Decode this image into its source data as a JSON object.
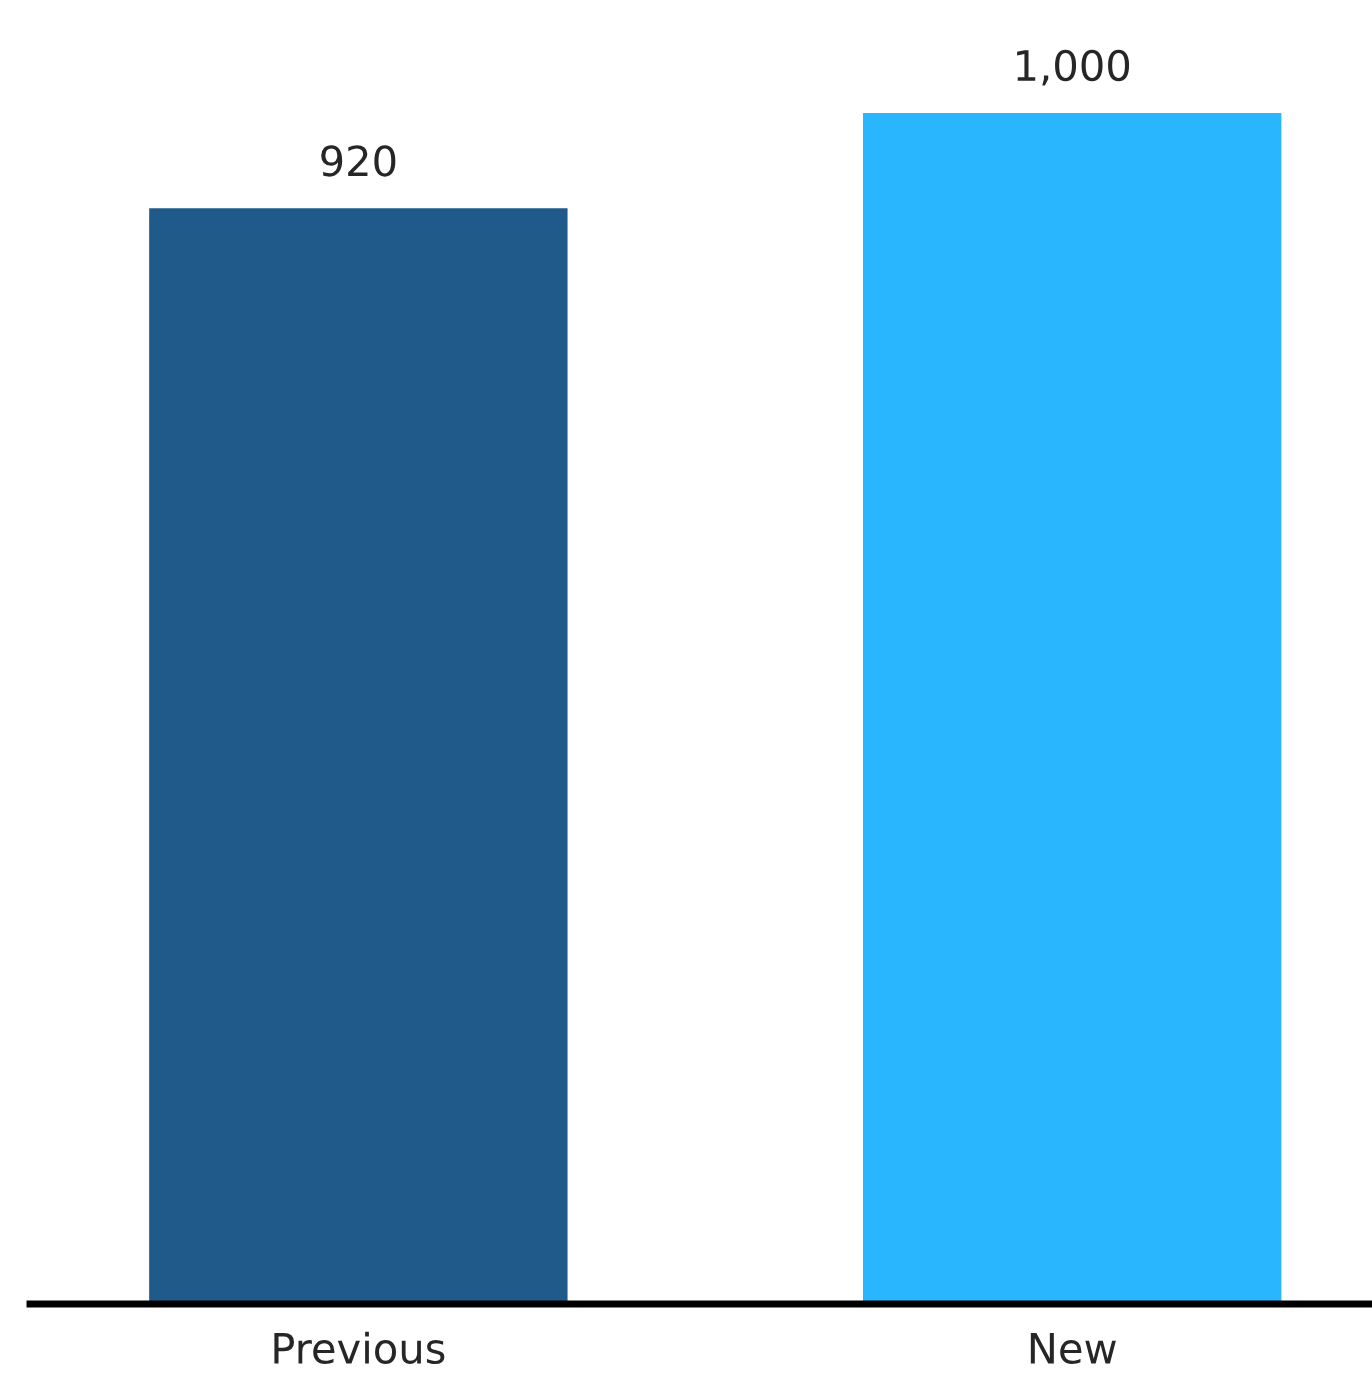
{
  "chart_data": {
    "type": "bar",
    "categories": [
      "Previous",
      "New"
    ],
    "values": [
      920,
      1000
    ],
    "colors": [
      "#1f5a8a",
      "#29b6ff"
    ],
    "value_labels": [
      "920",
      "1,000"
    ],
    "grid": false,
    "legend": false
  }
}
